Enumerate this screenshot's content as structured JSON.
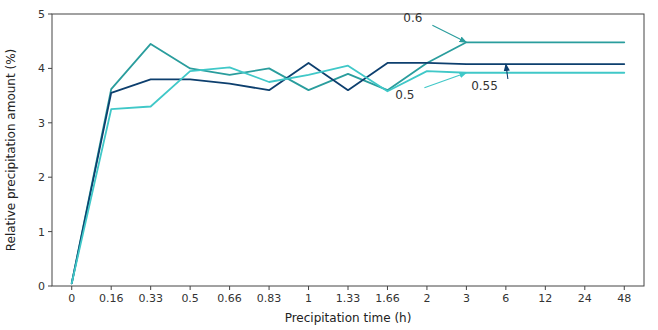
{
  "chart_data": {
    "type": "line",
    "categories": [
      "0",
      "0.16",
      "0.33",
      "0.5",
      "0.66",
      "0.83",
      "1",
      "1.33",
      "1.66",
      "2",
      "3",
      "6",
      "12",
      "24",
      "48"
    ],
    "series": [
      {
        "name": "0.6",
        "color": "#2a9d9d",
        "values": [
          0.05,
          3.62,
          4.45,
          4.0,
          3.88,
          4.0,
          3.6,
          3.9,
          3.6,
          4.1,
          4.48,
          4.48,
          4.48,
          4.48,
          4.48
        ]
      },
      {
        "name": "0.55",
        "color": "#0d3f6e",
        "values": [
          0.05,
          3.55,
          3.8,
          3.8,
          3.72,
          3.6,
          4.1,
          3.6,
          4.1,
          4.1,
          4.08,
          4.08,
          4.08,
          4.08,
          4.08
        ]
      },
      {
        "name": "0.5",
        "color": "#40c8c8",
        "values": [
          0.05,
          3.25,
          3.3,
          3.95,
          4.02,
          3.75,
          3.88,
          4.05,
          3.58,
          3.95,
          3.92,
          3.92,
          3.92,
          3.92,
          3.92
        ]
      }
    ],
    "xlabel": "Precipitation time (h)",
    "ylabel": "Relative precipitation amount (%)",
    "ylim": [
      0,
      5
    ],
    "yticks": [
      0,
      1,
      2,
      3,
      4,
      5
    ],
    "grid": false
  }
}
